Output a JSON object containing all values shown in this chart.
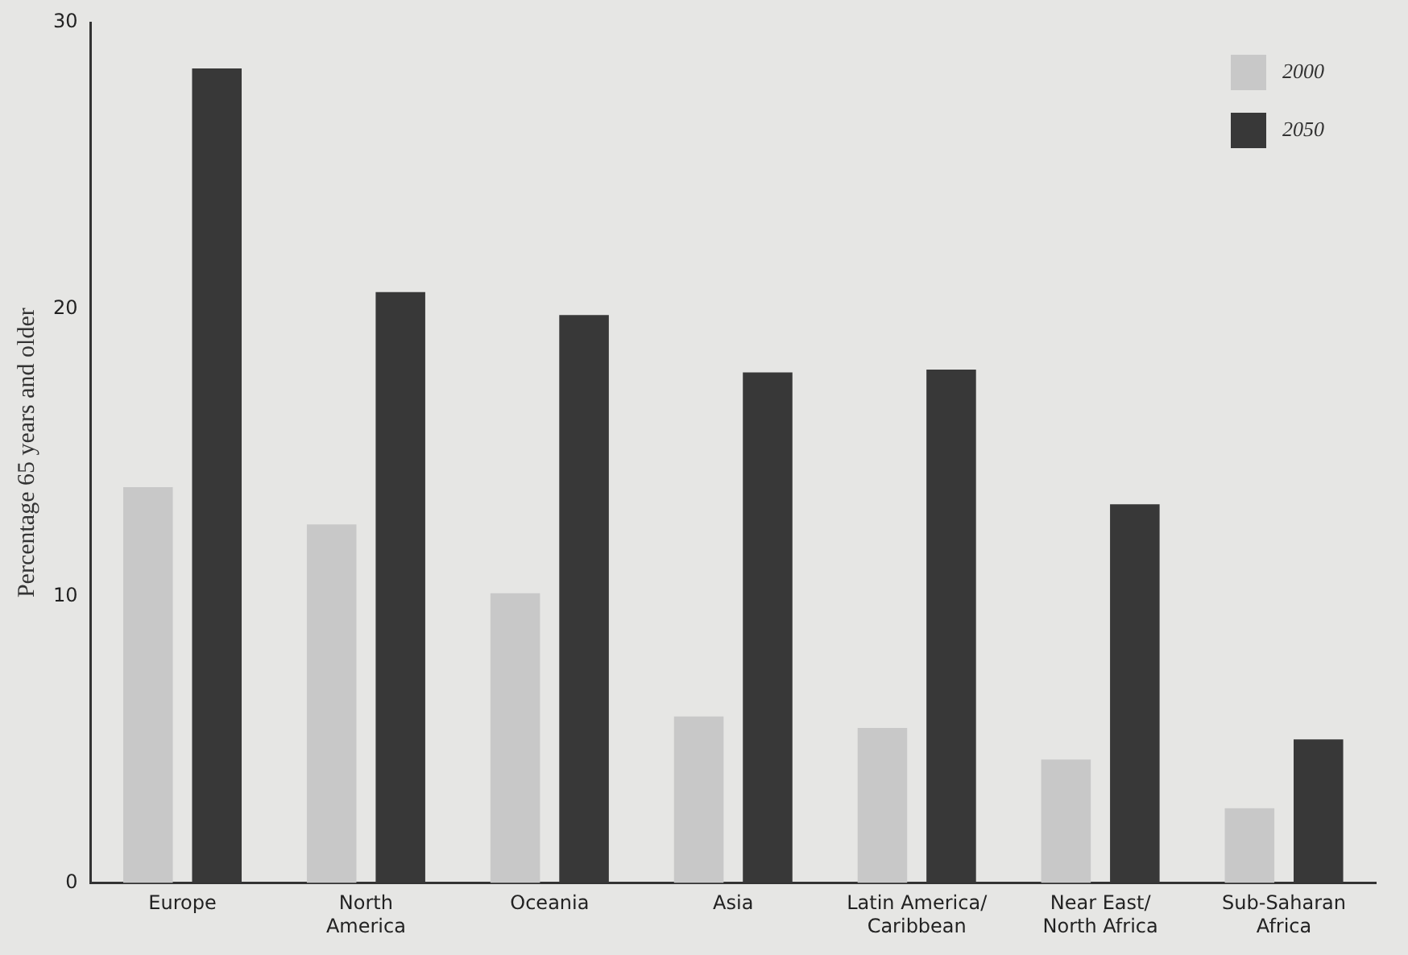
{
  "chart_data": {
    "type": "bar",
    "ylabel": "Percentage 65 years and older",
    "categories": [
      "Europe",
      "North America",
      "Oceania",
      "Asia",
      "Latin America/Caribbean",
      "Near East/North Africa",
      "Sub-Saharan Africa"
    ],
    "series": [
      {
        "name": "2000",
        "color": "#c8c8c8",
        "values": [
          13.8,
          12.5,
          10.1,
          5.8,
          5.4,
          4.3,
          2.6
        ]
      },
      {
        "name": "2050",
        "color": "#383838",
        "values": [
          28.4,
          20.6,
          19.8,
          17.8,
          17.9,
          13.2,
          5.0
        ]
      }
    ],
    "ylim": [
      0,
      30
    ],
    "yticks": [
      0,
      10,
      20,
      30
    ],
    "grid": false,
    "legend": "top right"
  }
}
